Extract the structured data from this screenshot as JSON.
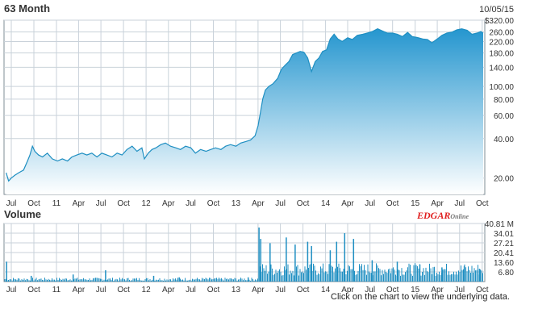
{
  "header": {
    "title": "63 Month",
    "date": "10/05/15",
    "volume_title": "Volume",
    "brand_edgar": "EDGAR",
    "brand_online": "Online"
  },
  "footer": {
    "note": "Click on the chart to view the underlying data."
  },
  "colors": {
    "line": "#1f8fc2",
    "fill_top": "#2596cf",
    "fill_bottom": "#ffffff",
    "volume": "#1f8fc2",
    "grid": "#c9d2da",
    "border": "#7f8c96",
    "brand": "#e02020"
  },
  "chart_data": [
    {
      "type": "area",
      "name": "price",
      "y_scale": "log",
      "ylim": [
        15,
        320
      ],
      "y_ticks": [
        20,
        40,
        60,
        80,
        100,
        140,
        180,
        220,
        260,
        320
      ],
      "y_tick_labels": [
        "20.00",
        "40.00",
        "60.00",
        "80.00",
        "100.00",
        "140.00",
        "180.00",
        "220.00",
        "260.00",
        "$320.00"
      ],
      "x_range": [
        "2010-07-01",
        "2015-10-05"
      ],
      "x_ticks": [
        {
          "date": "2010-07-01",
          "label": "Jul"
        },
        {
          "date": "2010-10-01",
          "label": "Oct"
        },
        {
          "date": "2011-01-01",
          "label": "11"
        },
        {
          "date": "2011-04-01",
          "label": "Apr"
        },
        {
          "date": "2011-07-01",
          "label": "Jul"
        },
        {
          "date": "2011-10-01",
          "label": "Oct"
        },
        {
          "date": "2012-01-01",
          "label": "12"
        },
        {
          "date": "2012-04-01",
          "label": "Apr"
        },
        {
          "date": "2012-07-01",
          "label": "Jul"
        },
        {
          "date": "2012-10-01",
          "label": "Oct"
        },
        {
          "date": "2013-01-01",
          "label": "13"
        },
        {
          "date": "2013-04-01",
          "label": "Apr"
        },
        {
          "date": "2013-07-01",
          "label": "Jul"
        },
        {
          "date": "2013-10-01",
          "label": "Oct"
        },
        {
          "date": "2014-01-01",
          "label": "14"
        },
        {
          "date": "2014-04-01",
          "label": "Apr"
        },
        {
          "date": "2014-07-01",
          "label": "Jul"
        },
        {
          "date": "2014-10-01",
          "label": "Oct"
        },
        {
          "date": "2015-01-01",
          "label": "15"
        },
        {
          "date": "2015-04-01",
          "label": "Apr"
        },
        {
          "date": "2015-07-01",
          "label": "Jul"
        },
        {
          "date": "2015-10-01",
          "label": "Oct"
        }
      ],
      "points": [
        [
          "2010-06-10",
          22
        ],
        [
          "2010-06-20",
          19
        ],
        [
          "2010-07-01",
          20
        ],
        [
          "2010-07-15",
          21
        ],
        [
          "2010-08-01",
          22
        ],
        [
          "2010-08-20",
          23
        ],
        [
          "2010-09-05",
          27
        ],
        [
          "2010-09-15",
          30
        ],
        [
          "2010-09-25",
          35
        ],
        [
          "2010-10-05",
          32
        ],
        [
          "2010-10-20",
          30
        ],
        [
          "2010-11-05",
          29
        ],
        [
          "2010-11-25",
          31
        ],
        [
          "2010-12-15",
          28
        ],
        [
          "2011-01-05",
          27
        ],
        [
          "2011-01-25",
          28
        ],
        [
          "2011-02-15",
          27
        ],
        [
          "2011-03-05",
          29
        ],
        [
          "2011-03-25",
          30
        ],
        [
          "2011-04-15",
          31
        ],
        [
          "2011-05-05",
          30
        ],
        [
          "2011-05-25",
          31
        ],
        [
          "2011-06-15",
          29
        ],
        [
          "2011-07-05",
          31
        ],
        [
          "2011-07-25",
          30
        ],
        [
          "2011-08-15",
          29
        ],
        [
          "2011-09-05",
          31
        ],
        [
          "2011-09-25",
          30
        ],
        [
          "2011-10-15",
          33
        ],
        [
          "2011-11-05",
          35
        ],
        [
          "2011-11-25",
          32
        ],
        [
          "2011-12-15",
          34
        ],
        [
          "2011-12-25",
          28
        ],
        [
          "2012-01-10",
          31
        ],
        [
          "2012-01-25",
          33
        ],
        [
          "2012-02-10",
          34
        ],
        [
          "2012-03-01",
          36
        ],
        [
          "2012-03-20",
          37
        ],
        [
          "2012-04-10",
          35
        ],
        [
          "2012-05-01",
          34
        ],
        [
          "2012-05-20",
          33
        ],
        [
          "2012-06-10",
          35
        ],
        [
          "2012-07-01",
          34
        ],
        [
          "2012-07-20",
          31
        ],
        [
          "2012-08-10",
          33
        ],
        [
          "2012-09-01",
          32
        ],
        [
          "2012-09-20",
          33
        ],
        [
          "2012-10-10",
          34
        ],
        [
          "2012-11-01",
          33
        ],
        [
          "2012-11-20",
          35
        ],
        [
          "2012-12-10",
          36
        ],
        [
          "2013-01-01",
          35
        ],
        [
          "2013-01-20",
          37
        ],
        [
          "2013-02-10",
          38
        ],
        [
          "2013-03-01",
          39
        ],
        [
          "2013-03-20",
          42
        ],
        [
          "2013-04-01",
          50
        ],
        [
          "2013-04-10",
          62
        ],
        [
          "2013-04-20",
          80
        ],
        [
          "2013-05-01",
          94
        ],
        [
          "2013-05-15",
          100
        ],
        [
          "2013-06-01",
          105
        ],
        [
          "2013-06-20",
          115
        ],
        [
          "2013-07-05",
          135
        ],
        [
          "2013-07-20",
          145
        ],
        [
          "2013-08-05",
          155
        ],
        [
          "2013-08-20",
          175
        ],
        [
          "2013-09-05",
          180
        ],
        [
          "2013-09-20",
          185
        ],
        [
          "2013-10-05",
          182
        ],
        [
          "2013-10-20",
          165
        ],
        [
          "2013-11-05",
          130
        ],
        [
          "2013-11-20",
          155
        ],
        [
          "2013-12-05",
          165
        ],
        [
          "2013-12-20",
          185
        ],
        [
          "2014-01-05",
          190
        ],
        [
          "2014-01-20",
          230
        ],
        [
          "2014-02-05",
          250
        ],
        [
          "2014-02-20",
          230
        ],
        [
          "2014-03-10",
          220
        ],
        [
          "2014-04-01",
          235
        ],
        [
          "2014-04-20",
          228
        ],
        [
          "2014-05-10",
          245
        ],
        [
          "2014-06-01",
          250
        ],
        [
          "2014-06-20",
          255
        ],
        [
          "2014-07-10",
          262
        ],
        [
          "2014-08-01",
          275
        ],
        [
          "2014-08-20",
          265
        ],
        [
          "2014-09-10",
          255
        ],
        [
          "2014-10-01",
          255
        ],
        [
          "2014-10-20",
          250
        ],
        [
          "2014-11-10",
          240
        ],
        [
          "2014-12-01",
          258
        ],
        [
          "2014-12-20",
          240
        ],
        [
          "2015-01-10",
          236
        ],
        [
          "2015-02-01",
          230
        ],
        [
          "2015-02-20",
          228
        ],
        [
          "2015-03-10",
          215
        ],
        [
          "2015-04-01",
          230
        ],
        [
          "2015-04-20",
          245
        ],
        [
          "2015-05-10",
          255
        ],
        [
          "2015-06-01",
          260
        ],
        [
          "2015-06-20",
          270
        ],
        [
          "2015-07-10",
          275
        ],
        [
          "2015-08-01",
          268
        ],
        [
          "2015-08-20",
          250
        ],
        [
          "2015-09-10",
          255
        ],
        [
          "2015-09-25",
          262
        ],
        [
          "2015-10-05",
          255
        ]
      ]
    },
    {
      "type": "bar",
      "name": "volume",
      "unit": "M",
      "ylim": [
        0,
        40.81
      ],
      "y_ticks": [
        6.8,
        13.6,
        20.41,
        27.21,
        34.01,
        40.81
      ],
      "y_tick_labels": [
        "6.80",
        "13.60",
        "20.41",
        "27.21",
        "34.01",
        "40.81 M"
      ],
      "x_range": [
        "2010-07-01",
        "2015-10-05"
      ],
      "spikes": [
        [
          "2010-06-12",
          14
        ],
        [
          "2010-09-20",
          4
        ],
        [
          "2011-03-10",
          5
        ],
        [
          "2011-07-20",
          8
        ],
        [
          "2012-02-01",
          4
        ],
        [
          "2012-05-15",
          3
        ],
        [
          "2013-02-20",
          3
        ],
        [
          "2013-04-05",
          38
        ],
        [
          "2013-04-12",
          30
        ],
        [
          "2013-05-20",
          27
        ],
        [
          "2013-07-25",
          31
        ],
        [
          "2013-08-30",
          26
        ],
        [
          "2013-10-20",
          28
        ],
        [
          "2013-11-05",
          25
        ],
        [
          "2014-01-20",
          22
        ],
        [
          "2014-02-15",
          28
        ],
        [
          "2014-03-20",
          34
        ],
        [
          "2014-04-25",
          30
        ],
        [
          "2014-07-10",
          15
        ],
        [
          "2014-10-20",
          14
        ],
        [
          "2015-01-20",
          12
        ],
        [
          "2015-04-20",
          10
        ],
        [
          "2015-07-20",
          11
        ],
        [
          "2015-09-20",
          9
        ]
      ]
    }
  ]
}
